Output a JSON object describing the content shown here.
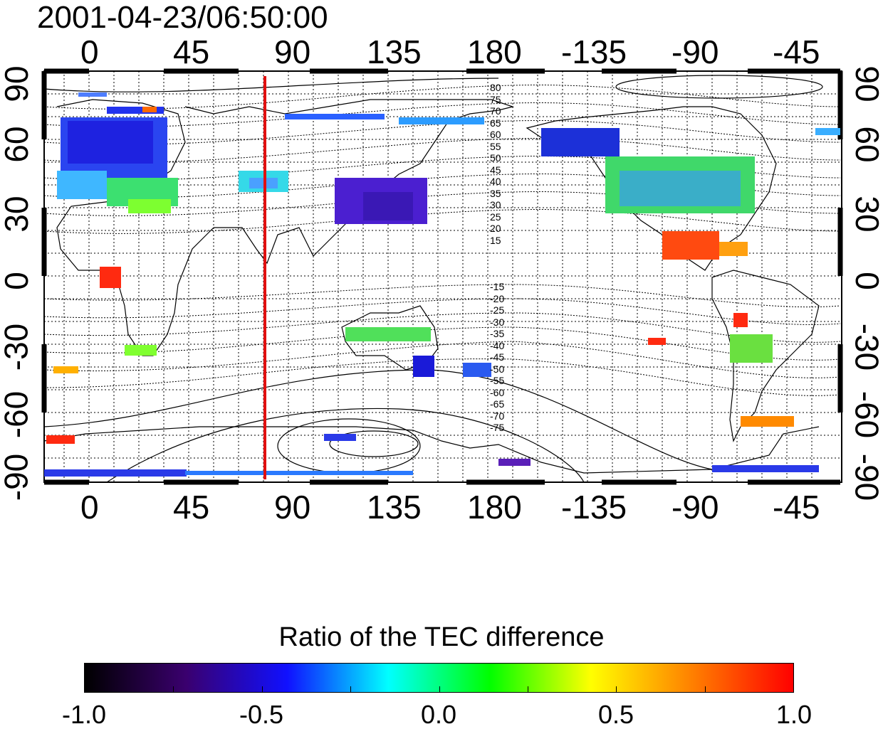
{
  "title": "2001-04-23/06:50:00",
  "colors": {
    "meridian_line": "#e01010",
    "colormap": [
      "#000000",
      "#3a006e",
      "#1010ff",
      "#00ffff",
      "#00ff00",
      "#ffff00",
      "#ff8000",
      "#ff0000"
    ]
  },
  "axes": {
    "x_ticks": [
      "0",
      "45",
      "90",
      "135",
      "180",
      "-135",
      "-90",
      "-45"
    ],
    "y_ticks": [
      "90",
      "60",
      "30",
      "0",
      "-30",
      "-60",
      "-90"
    ]
  },
  "contour_labels_north": [
    "80",
    "75",
    "70",
    "65",
    "60",
    "55",
    "50",
    "45",
    "40",
    "35",
    "30",
    "25",
    "20",
    "15"
  ],
  "contour_labels_south": [
    "-15",
    "-20",
    "-25",
    "-30",
    "-35",
    "-40",
    "-45",
    "-50",
    "-55",
    "-60",
    "-65",
    "-70",
    "-75"
  ],
  "colorbar": {
    "title": "Ratio of the TEC difference",
    "ticks": [
      "-1.0",
      "-0.5",
      "0.0",
      "0.5",
      "1.0"
    ],
    "min": -1.0,
    "max": 1.0
  }
}
